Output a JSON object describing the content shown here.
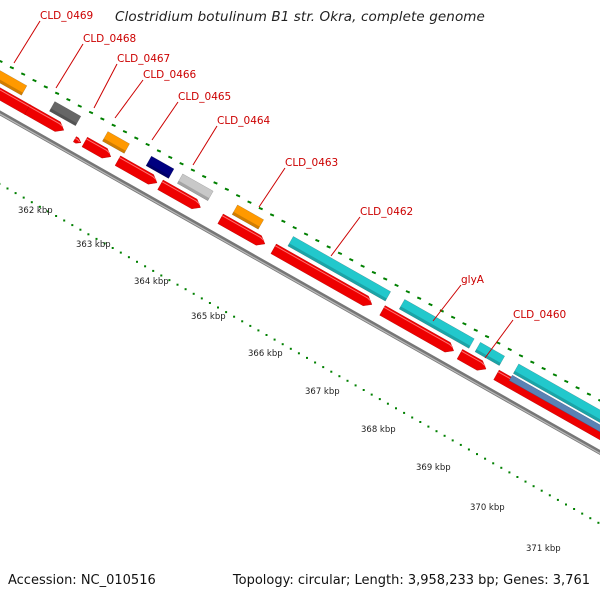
{
  "title": "Clostridium botulinum B1 str. Okra, complete genome",
  "footer": {
    "accession": "Accession: NC_010516",
    "summary": "Topology: circular; Length: 3,958,233 bp; Genes: 3,761"
  },
  "colors": {
    "cds": "#ee0000",
    "gene_orange": "#ff9900",
    "gene_dark_gray": "#666666",
    "gene_navy": "#000080",
    "gene_light_gray": "#c8c8c8",
    "gene_cyan": "#22c8cc",
    "gene_steel_blue": "#5a82b4",
    "backbone": "#777777",
    "tick": "#008000",
    "label": "#cc0000"
  },
  "gene_labels": [
    "CLD_0469",
    "CLD_0468",
    "CLD_0467",
    "CLD_0466",
    "CLD_0465",
    "CLD_0464",
    "CLD_0463",
    "CLD_0462",
    "glyA",
    "CLD_0460"
  ],
  "ticks": [
    "362 kbp",
    "363 kbp",
    "364 kbp",
    "365 kbp",
    "366 kbp",
    "367 kbp",
    "368 kbp",
    "369 kbp",
    "370 kbp",
    "371 kbp"
  ]
}
